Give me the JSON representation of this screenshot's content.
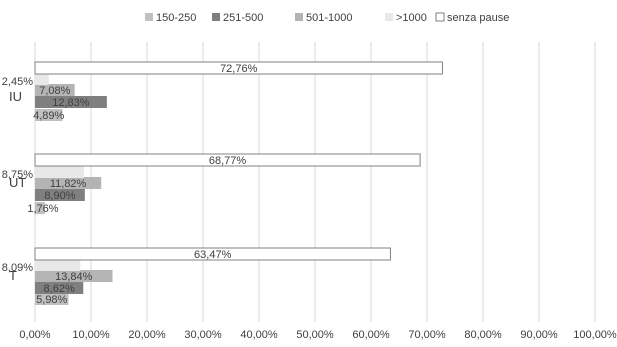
{
  "chart_data": {
    "type": "bar",
    "orientation": "horizontal",
    "stacking": "waterfall",
    "title": "",
    "xlabel": "",
    "ylabel": "",
    "xlim": [
      0,
      100
    ],
    "x_ticks": [
      "0,00%",
      "10,00%",
      "20,00%",
      "30,00%",
      "40,00%",
      "50,00%",
      "60,00%",
      "70,00%",
      "80,00%",
      "90,00%",
      "100,00%"
    ],
    "grid": "vertical",
    "legend": "top",
    "categories": [
      "IU",
      "UT",
      "T"
    ],
    "series": [
      {
        "name": "150-250",
        "color": "#c0c0c0",
        "values": [
          4.89,
          1.76,
          5.98
        ],
        "labels": [
          "4,89%",
          "1,76%",
          "5,98%"
        ]
      },
      {
        "name": "251-500",
        "color": "#7f7f7f",
        "values": [
          12.83,
          8.9,
          8.62
        ],
        "labels": [
          "12,83%",
          "8,90%",
          "8,62%"
        ]
      },
      {
        "name": "501-1000",
        "color": "#b4b4b4",
        "values": [
          7.08,
          11.82,
          13.84
        ],
        "labels": [
          "7,08%",
          "11,82%",
          "13,84%"
        ]
      },
      {
        "name": ">1000",
        "color": "#e8e8e8",
        "values": [
          2.45,
          8.75,
          8.09
        ],
        "labels": [
          "2,45%",
          "8,75%",
          "8,09%"
        ]
      },
      {
        "name": "senza pause",
        "color": "#ffffff",
        "values": [
          72.76,
          68.77,
          63.47
        ],
        "labels": [
          "72,76%",
          "68,77%",
          "63,47%"
        ]
      }
    ]
  }
}
